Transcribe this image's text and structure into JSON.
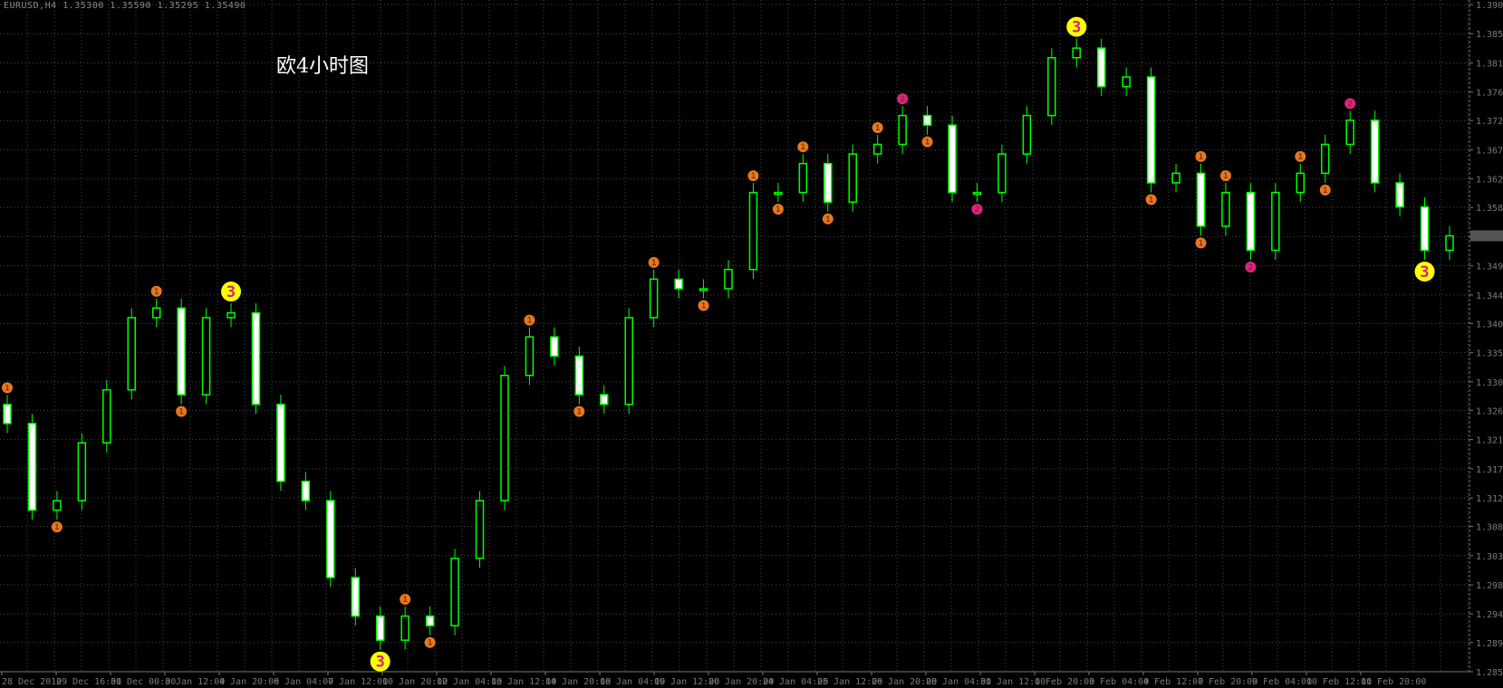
{
  "header": {
    "symbol": "EURUSD,H4",
    "open": "1.35300",
    "high": "1.35590",
    "low": "1.35295",
    "close": "1.35490"
  },
  "annotation": "欧4小时图",
  "colors": {
    "background": "#000000",
    "candle_border": "#00ff00",
    "bear_body": "#ffffff",
    "bull_body": "#000000",
    "grid": "#4a4a4a",
    "axis_text": "#7a7a7a",
    "marker_1": "#e87722",
    "marker_2": "#e0208a",
    "marker_3": "#ffff00"
  },
  "chart_data": {
    "type": "candlestick",
    "title": "",
    "grid": true,
    "ylim": [
      1.2851,
      1.3903
    ],
    "y_ticks": [
      "1.39030",
      "1.38570",
      "1.38110",
      "1.37650",
      "1.37200",
      "1.36740",
      "1.36280",
      "1.35830",
      "1.35370",
      "1.34910",
      "1.34450",
      "1.34000",
      "1.33540",
      "1.33080",
      "1.32630",
      "1.32170",
      "1.31710",
      "1.31250",
      "1.30800",
      "1.30340",
      "1.29880",
      "1.29420",
      "1.28970",
      "1.28510"
    ],
    "x_ticks": [
      "28 Dec 2010",
      "29 Dec 16:00",
      "31 Dec 00:00",
      "3 Jan 12:00",
      "4 Jan 20:00",
      "6 Jan 04:00",
      "7 Jan 12:00",
      "10 Jan 20:00",
      "12 Jan 04:00",
      "13 Jan 12:00",
      "14 Jan 20:00",
      "18 Jan 04:00",
      "19 Jan 12:00",
      "20 Jan 20:00",
      "24 Jan 04:00",
      "25 Jan 12:00",
      "26 Jan 20:00",
      "28 Jan 04:00",
      "31 Jan 12:00",
      "1 Feb 20:00",
      "3 Feb 04:00",
      "4 Feb 12:00",
      "7 Feb 20:00",
      "9 Feb 04:00",
      "10 Feb 12:00",
      "11 Feb 20:00"
    ],
    "closes": [
      1.32423,
      1.31057,
      1.31208,
      1.32119,
      1.32954,
      1.34093,
      1.34244,
      1.32878,
      1.34093,
      1.34169,
      1.32726,
      1.31512,
      1.31208,
      1.29994,
      1.29387,
      1.29007,
      1.29387,
      1.29235,
      1.30298,
      1.31208,
      1.33182,
      1.33789,
      1.33486,
      1.32878,
      1.32726,
      1.34093,
      1.347,
      1.34548,
      1.34548,
      1.34852,
      1.36066,
      1.36066,
      1.36522,
      1.35914,
      1.36673,
      1.36825,
      1.3728,
      1.37129,
      1.36066,
      1.36066,
      1.36673,
      1.3728,
      1.38191,
      1.38343,
      1.37736,
      1.37888,
      1.36218,
      1.3637,
      1.35535,
      1.36066,
      1.35155,
      1.36066,
      1.3637,
      1.36825,
      1.37205,
      1.36218,
      1.35839,
      1.35155,
      1.35383
    ],
    "markers": [
      {
        "bar": 0,
        "label": "1",
        "pos": "top"
      },
      {
        "bar": 2,
        "label": "1",
        "pos": "bottom"
      },
      {
        "bar": 6,
        "label": "1",
        "pos": "top"
      },
      {
        "bar": 7,
        "label": "1",
        "pos": "bottom"
      },
      {
        "bar": 16,
        "label": "1",
        "pos": "top"
      },
      {
        "bar": 17,
        "label": "1",
        "pos": "bottom"
      },
      {
        "bar": 21,
        "label": "1",
        "pos": "top"
      },
      {
        "bar": 23,
        "label": "1",
        "pos": "bottom"
      },
      {
        "bar": 26,
        "label": "1",
        "pos": "top"
      },
      {
        "bar": 28,
        "label": "1",
        "pos": "bottom"
      },
      {
        "bar": 30,
        "label": "1",
        "pos": "top"
      },
      {
        "bar": 31,
        "label": "1",
        "pos": "bottom"
      },
      {
        "bar": 32,
        "label": "1",
        "pos": "top"
      },
      {
        "bar": 33,
        "label": "1",
        "pos": "bottom"
      },
      {
        "bar": 35,
        "label": "1",
        "pos": "top"
      },
      {
        "bar": 37,
        "label": "1",
        "pos": "bottom"
      },
      {
        "bar": 46,
        "label": "1",
        "pos": "bottom"
      },
      {
        "bar": 48,
        "label": "1",
        "pos": "top"
      },
      {
        "bar": 48,
        "label": "1",
        "pos": "bottom"
      },
      {
        "bar": 49,
        "label": "1",
        "pos": "top"
      },
      {
        "bar": 52,
        "label": "1",
        "pos": "top"
      },
      {
        "bar": 53,
        "label": "1",
        "pos": "bottom"
      },
      {
        "bar": 36,
        "label": "2",
        "pos": "top"
      },
      {
        "bar": 39,
        "label": "2",
        "pos": "bottom"
      },
      {
        "bar": 50,
        "label": "2",
        "pos": "bottom"
      },
      {
        "bar": 54,
        "label": "2",
        "pos": "top"
      },
      {
        "bar": 9,
        "label": "3",
        "pos": "top"
      },
      {
        "bar": 15,
        "label": "3",
        "pos": "bottom"
      },
      {
        "bar": 43,
        "label": "3",
        "pos": "top"
      },
      {
        "bar": 57,
        "label": "3",
        "pos": "bottom"
      }
    ]
  }
}
